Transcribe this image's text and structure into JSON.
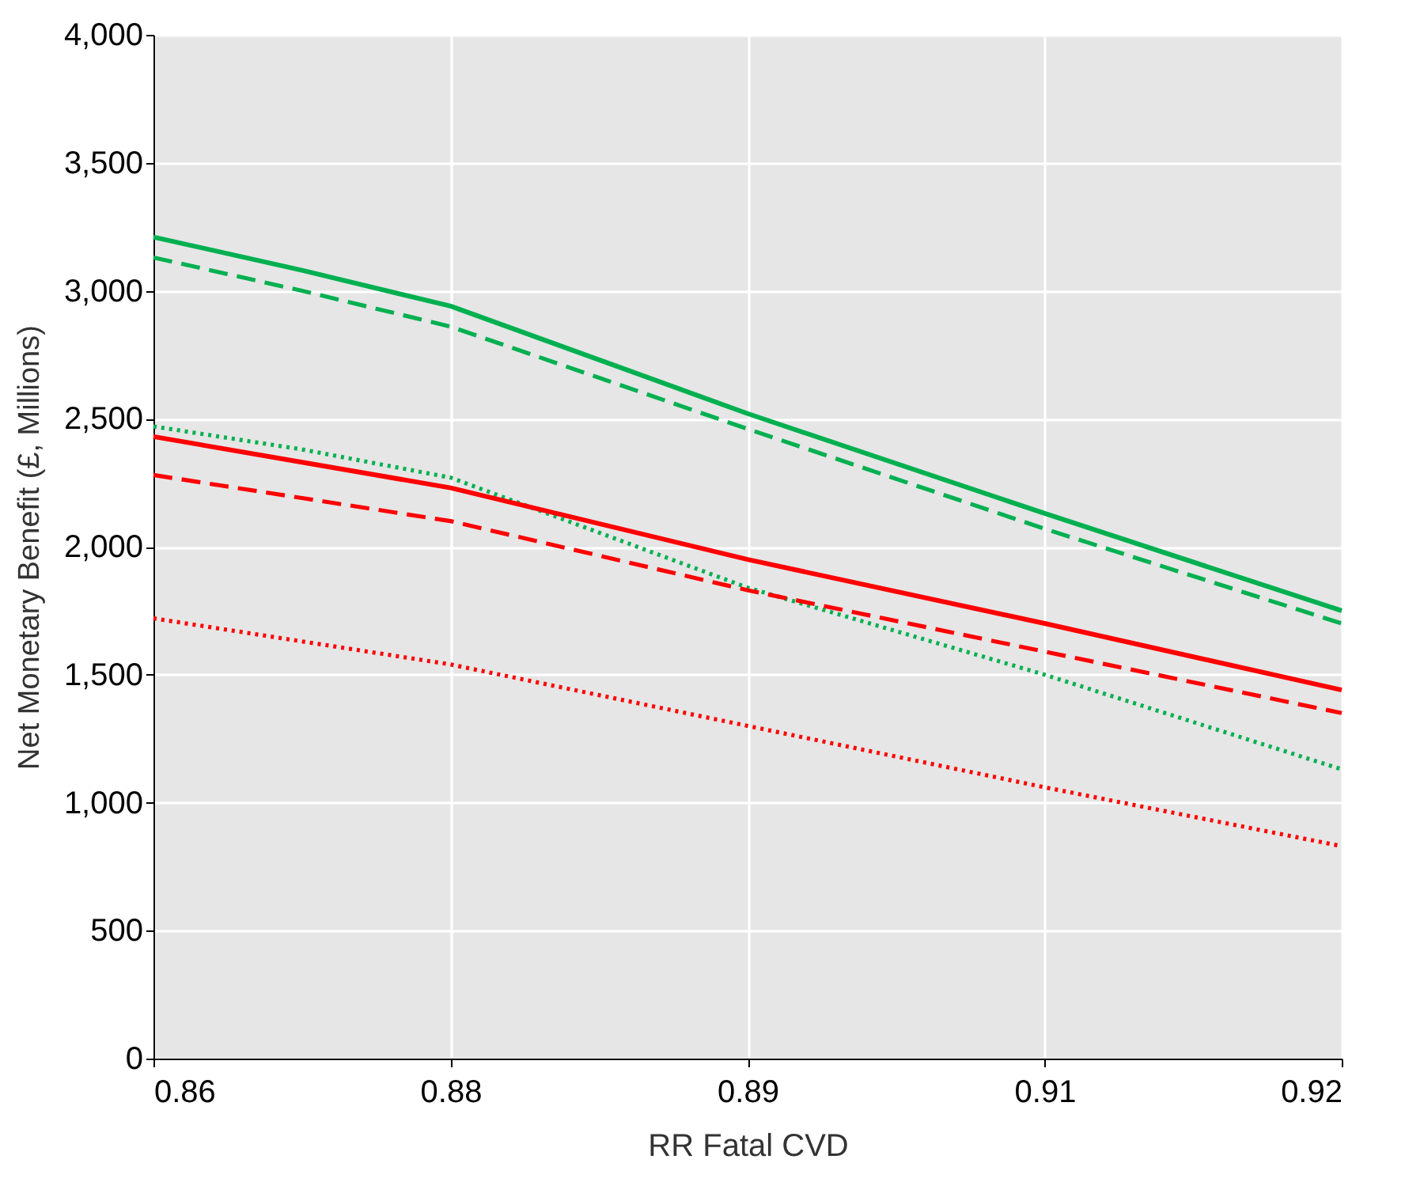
{
  "chart_data": {
    "type": "line",
    "xlabel": "RR Fatal CVD",
    "ylabel": "Net Monetary Benefit (£, Millions)",
    "x": [
      0.86,
      0.8675,
      0.875,
      0.89,
      0.905,
      0.92
    ],
    "xlim": [
      0.86,
      0.92
    ],
    "xticks": [
      0.86,
      {
        "value": 0.875,
        "label": "0.88"
      },
      0.89,
      {
        "value": 0.905,
        "label": "0.91"
      },
      0.92
    ],
    "ylim": [
      0,
      4000
    ],
    "yticks": [
      0,
      500,
      {
        "value": 1000,
        "label": "1,000"
      },
      {
        "value": 1500,
        "label": "1,500"
      },
      {
        "value": 2000,
        "label": "2,000"
      },
      {
        "value": 2500,
        "label": "2,500"
      },
      {
        "value": 3000,
        "label": "3,000"
      },
      {
        "value": 3500,
        "label": "3,500"
      },
      {
        "value": 4000,
        "label": "4,000"
      }
    ],
    "grid": true,
    "marker": "none",
    "series": [
      {
        "color": "#00b050",
        "line_style": "solid",
        "values": [
          3210,
          3080,
          2940,
          2520,
          2130,
          1750
        ]
      },
      {
        "color": "#00b050",
        "line_style": "dashed",
        "values": [
          3130,
          3000,
          2860,
          2460,
          2070,
          1700
        ]
      },
      {
        "color": "#00b050",
        "line_style": "dotted",
        "values": [
          2470,
          2380,
          2270,
          1840,
          1500,
          1130
        ]
      },
      {
        "color": "#ff0000",
        "line_style": "solid",
        "values": [
          2430,
          2330,
          2230,
          1950,
          1700,
          1440
        ]
      },
      {
        "color": "#ff0000",
        "line_style": "dashed",
        "values": [
          2280,
          2190,
          2100,
          1830,
          1590,
          1350
        ]
      },
      {
        "color": "#ff0000",
        "line_style": "dotted",
        "values": [
          1720,
          1630,
          1540,
          1300,
          1060,
          830
        ]
      }
    ]
  }
}
